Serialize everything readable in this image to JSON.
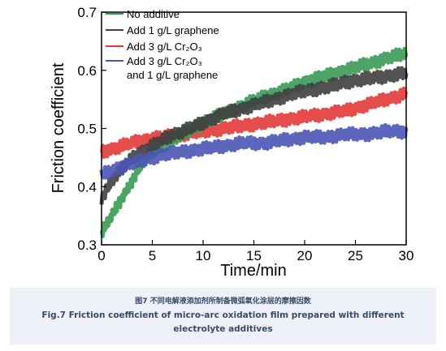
{
  "chart_data": {
    "type": "line",
    "xlabel": "Time/min",
    "ylabel": "Friction coefficient",
    "xlim": [
      0,
      30
    ],
    "ylim": [
      0.3,
      0.7
    ],
    "xticks": [
      "0",
      "5",
      "10",
      "15",
      "20",
      "25",
      "30"
    ],
    "yticks": [
      "0.3",
      "0.4",
      "0.5",
      "0.6",
      "0.7"
    ],
    "grid": false,
    "legend_position": "top-left",
    "series": [
      {
        "name": "No additive",
        "color": "#3a9a55",
        "x": [
          0,
          1,
          2,
          3,
          4,
          5,
          6,
          7,
          8,
          9,
          10,
          12,
          14,
          16,
          18,
          20,
          22,
          24,
          26,
          28,
          30
        ],
        "y": [
          0.32,
          0.35,
          0.38,
          0.41,
          0.44,
          0.46,
          0.47,
          0.48,
          0.49,
          0.5,
          0.51,
          0.525,
          0.54,
          0.555,
          0.565,
          0.58,
          0.59,
          0.6,
          0.61,
          0.62,
          0.63
        ]
      },
      {
        "name": "Add 1 g/L graphene",
        "color": "#3f3f3f",
        "x": [
          0,
          1,
          2,
          3,
          4,
          5,
          6,
          7,
          8,
          10,
          12,
          14,
          16,
          18,
          20,
          22,
          24,
          26,
          28,
          30
        ],
        "y": [
          0.38,
          0.41,
          0.43,
          0.45,
          0.46,
          0.47,
          0.48,
          0.49,
          0.495,
          0.51,
          0.525,
          0.535,
          0.545,
          0.555,
          0.565,
          0.57,
          0.58,
          0.585,
          0.59,
          0.595
        ]
      },
      {
        "name": "Add 3 g/L Cr2O3",
        "color": "#e23a3a",
        "x": [
          0,
          2,
          4,
          6,
          8,
          10,
          12,
          14,
          16,
          18,
          20,
          22,
          24,
          26,
          28,
          30
        ],
        "y": [
          0.46,
          0.47,
          0.48,
          0.485,
          0.49,
          0.495,
          0.5,
          0.505,
          0.51,
          0.515,
          0.52,
          0.525,
          0.53,
          0.54,
          0.55,
          0.56
        ]
      },
      {
        "name": "Add 3 g/L Cr2O3 and 1 g/L graphene",
        "color": "#4a55b5",
        "x": [
          0,
          2,
          4,
          6,
          8,
          10,
          12,
          14,
          16,
          18,
          20,
          22,
          24,
          26,
          28,
          30
        ],
        "y": [
          0.42,
          0.435,
          0.445,
          0.455,
          0.46,
          0.465,
          0.47,
          0.475,
          0.475,
          0.48,
          0.485,
          0.485,
          0.49,
          0.49,
          0.495,
          0.495
        ]
      }
    ]
  },
  "legend": {
    "items": [
      {
        "text": "No additive",
        "line2": ""
      },
      {
        "text": "Add 1 g/L graphene",
        "line2": ""
      },
      {
        "text": "Add 3 g/L Cr₂O₃",
        "line2": ""
      },
      {
        "text": "Add 3 g/L Cr₂O₃",
        "line2": "and 1 g/L graphene"
      }
    ]
  },
  "caption": {
    "cn": "图7 不同电解液添加剂所制备微弧氧化涂层的摩擦因数",
    "en": "Fig.7 Friction coefficient of micro-arc oxidation film prepared with different electrolyte additives"
  }
}
